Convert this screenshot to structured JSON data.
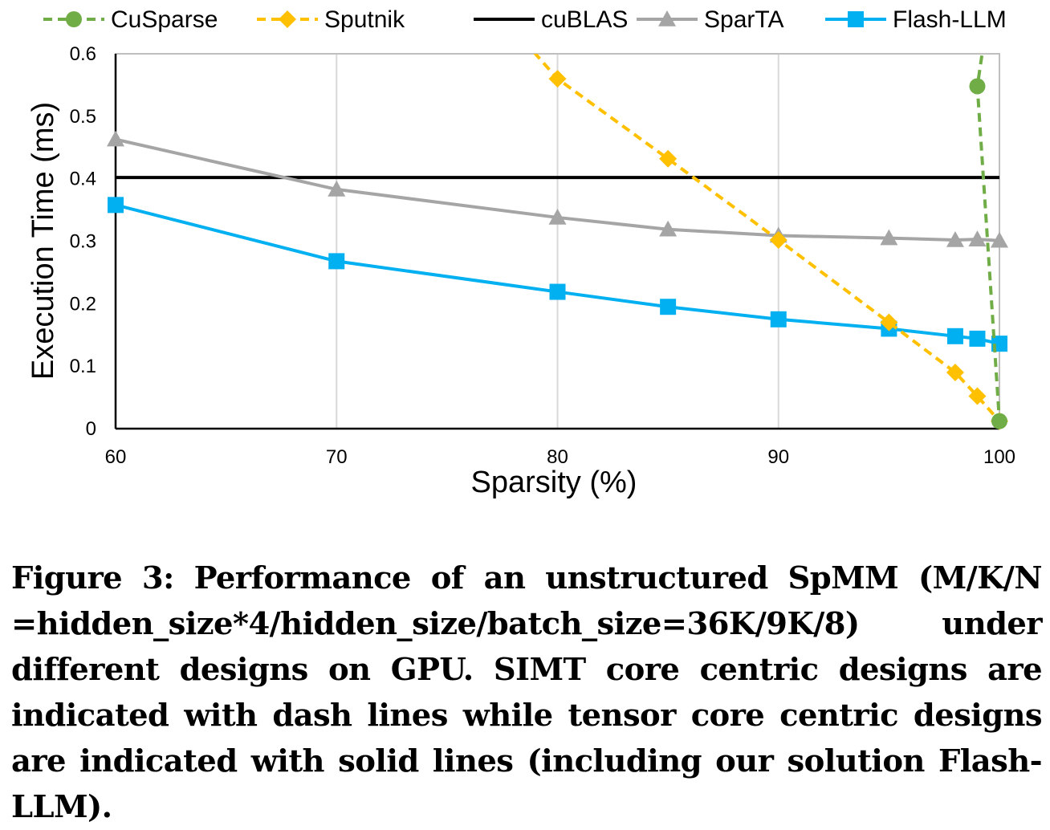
{
  "chart_data": {
    "type": "line",
    "xlabel": "Sparsity (%)",
    "ylabel": "Execution Time (ms)",
    "xlim": [
      60,
      100
    ],
    "ylim": [
      0,
      0.6
    ],
    "xticks": [
      "60",
      "70",
      "80",
      "90",
      "100"
    ],
    "yticks": [
      "0",
      "0.1",
      "0.2",
      "0.3",
      "0.4",
      "0.5",
      "0.6"
    ],
    "grid": "vertical",
    "legend_position": "top",
    "series": [
      {
        "name": "CuSparse",
        "style": "dashed",
        "marker": "circle",
        "color": "#70AD47",
        "x": [
          99.3,
          99.0,
          100
        ],
        "y": [
          0.62,
          0.548,
          0.012
        ],
        "marker_mask": [
          false,
          true,
          true
        ]
      },
      {
        "name": "Sputnik",
        "style": "dashed",
        "marker": "diamond",
        "color": "#FFC000",
        "x": [
          78.5,
          80,
          85,
          90,
          95,
          98,
          99,
          100
        ],
        "y": [
          0.62,
          0.56,
          0.432,
          0.302,
          0.17,
          0.09,
          0.052,
          0.012
        ],
        "marker_mask": [
          false,
          true,
          true,
          true,
          true,
          true,
          true,
          true
        ]
      },
      {
        "name": "cuBLAS",
        "style": "solid",
        "marker": "none",
        "color": "#000000",
        "x": [
          60,
          100
        ],
        "y": [
          0.402,
          0.402
        ]
      },
      {
        "name": "SparTA",
        "style": "solid",
        "marker": "triangle",
        "color": "#A5A5A5",
        "x": [
          60,
          70,
          80,
          85,
          90,
          95,
          98,
          99,
          100
        ],
        "y": [
          0.463,
          0.383,
          0.338,
          0.319,
          0.309,
          0.305,
          0.302,
          0.303,
          0.301
        ]
      },
      {
        "name": "Flash-LLM",
        "style": "solid",
        "marker": "square",
        "color": "#00B0F0",
        "x": [
          60,
          70,
          80,
          85,
          90,
          95,
          98,
          99,
          100
        ],
        "y": [
          0.358,
          0.268,
          0.219,
          0.195,
          0.175,
          0.16,
          0.148,
          0.144,
          0.136
        ]
      }
    ]
  },
  "caption": "Figure 3: Performance of an unstructured SpMM (M/K/N =hidden_size*4/hidden_size/batch_size=36K/9K/8) under different designs on GPU. SIMT core centric designs are indicated with dash lines while tensor core centric designs are indicated with solid lines (including our solution Flash-LLM)."
}
